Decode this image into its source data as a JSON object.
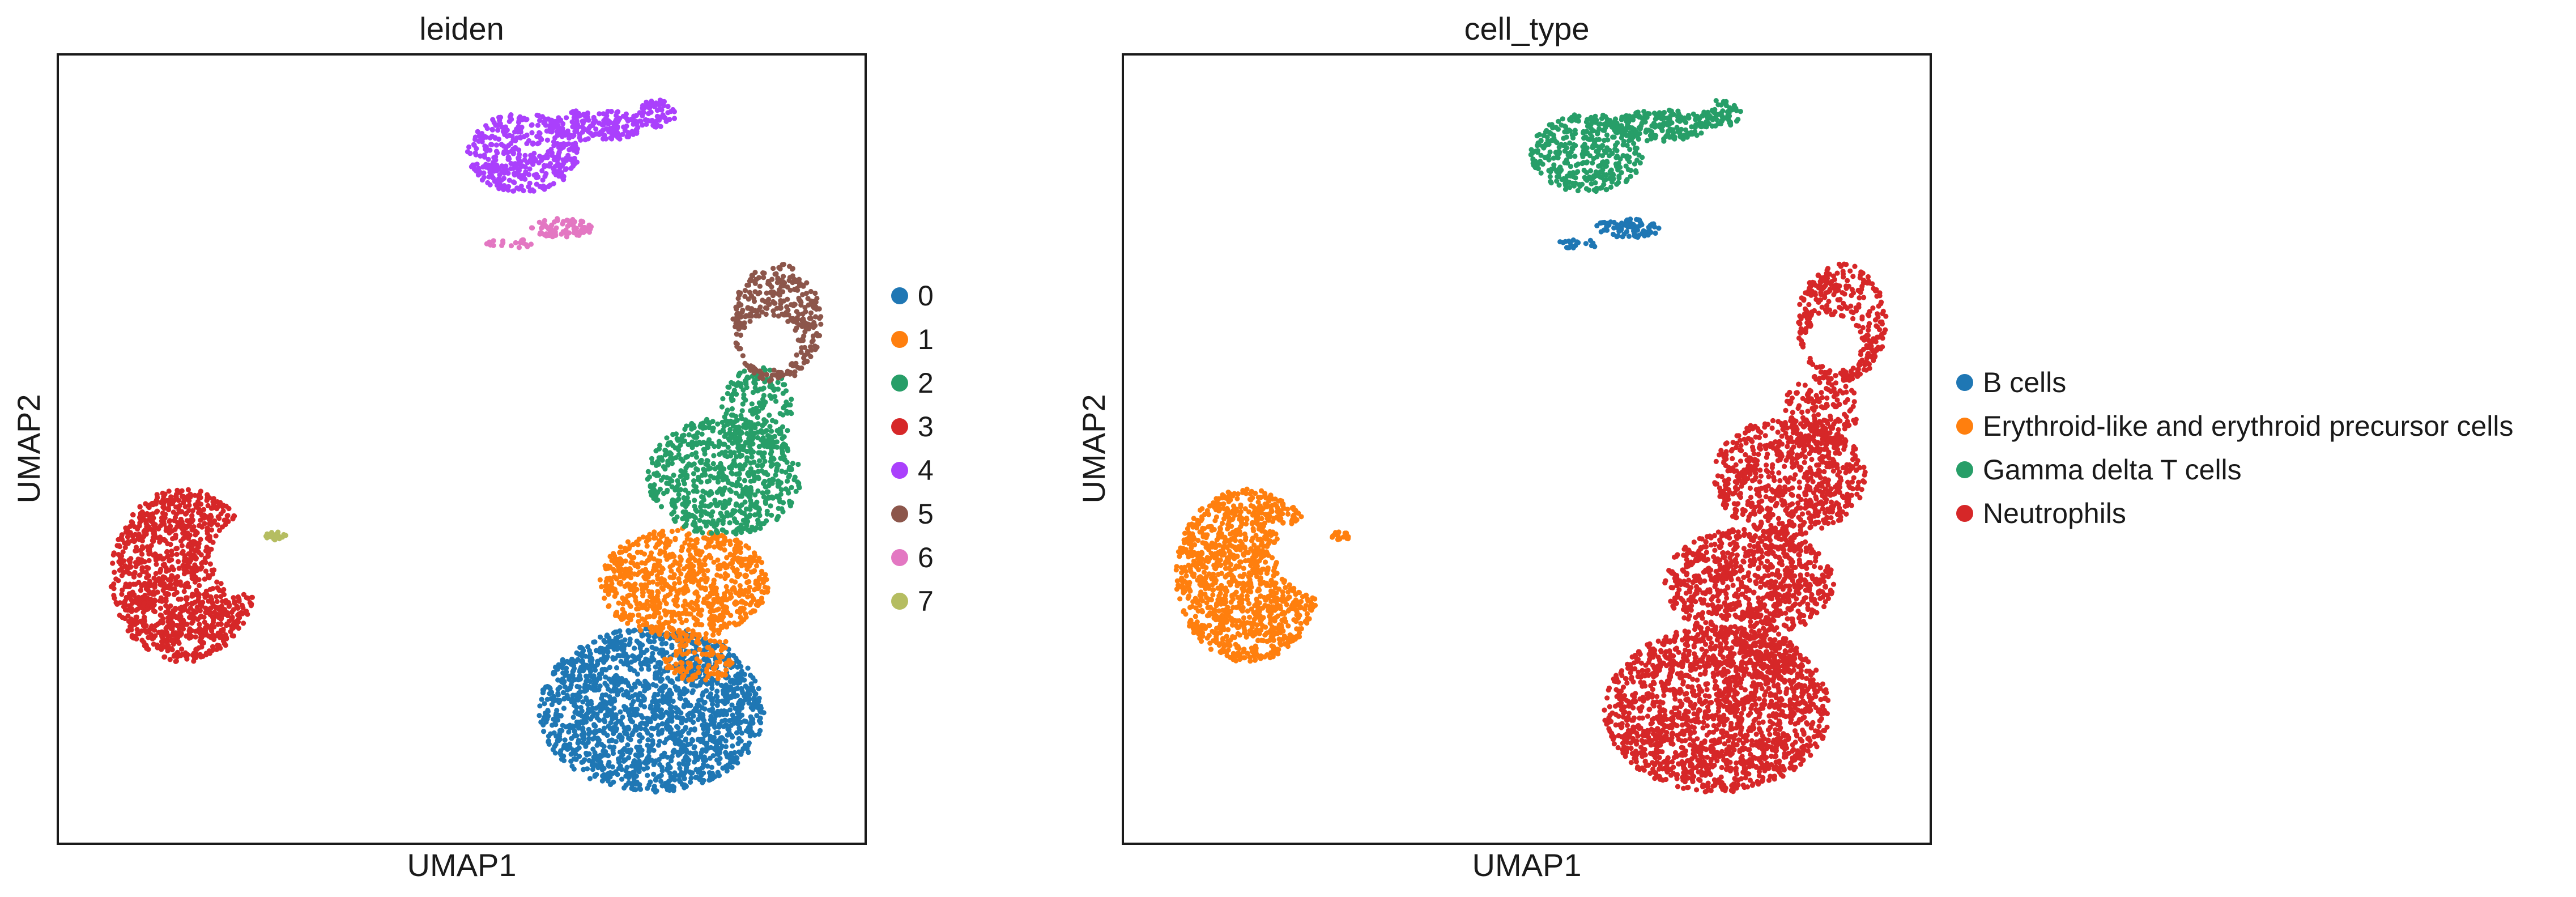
{
  "chart_data": [
    {
      "type": "scatter",
      "title": "leiden",
      "xlabel": "UMAP1",
      "ylabel": "UMAP2",
      "xlim": [
        -4,
        16
      ],
      "ylim": [
        -6,
        14
      ],
      "grid": false,
      "legend_position": "right",
      "series": [
        {
          "name": "0",
          "color": "#1f77b4",
          "shapes": [
            {
              "cx": 10.7,
              "cy": -2.6,
              "rx": 2.8,
              "ry": 2.1,
              "n": 1700
            }
          ]
        },
        {
          "name": "1",
          "color": "#ff7f0e",
          "shapes": [
            {
              "cx": 11.5,
              "cy": 0.6,
              "rx": 2.1,
              "ry": 1.4,
              "n": 820
            },
            {
              "cx": 11.9,
              "cy": -1.3,
              "rx": 0.9,
              "ry": 0.6,
              "n": 110
            }
          ]
        },
        {
          "name": "2",
          "color": "#279e68",
          "shapes": [
            {
              "cx": 12.5,
              "cy": 3.3,
              "rx": 1.9,
              "ry": 1.5,
              "n": 700
            },
            {
              "cx": 13.3,
              "cy": 5.0,
              "rx": 0.9,
              "ry": 1.1,
              "n": 180
            }
          ]
        },
        {
          "name": "3",
          "color": "#d62728",
          "shapes": [
            {
              "cx": -0.9,
              "cy": 0.8,
              "rx": 1.8,
              "ry": 2.2,
              "n": 1100,
              "notch": {
                "cx": 0.8,
                "cy": 1.3,
                "r": 1.0
              }
            }
          ]
        },
        {
          "name": "4",
          "color": "#aa40fc",
          "shapes": [
            {
              "cx": 7.5,
              "cy": 11.5,
              "rx": 1.4,
              "ry": 1.0,
              "n": 380
            },
            {
              "cx": 9.3,
              "cy": 12.2,
              "rx": 1.2,
              "ry": 0.4,
              "n": 180
            },
            {
              "cx": 10.8,
              "cy": 12.5,
              "rx": 0.5,
              "ry": 0.35,
              "n": 60
            }
          ]
        },
        {
          "name": "5",
          "color": "#8c564b",
          "shapes": [
            {
              "cx": 13.8,
              "cy": 7.2,
              "rx": 1.1,
              "ry": 1.5,
              "n": 310,
              "notch": {
                "cx": 13.6,
                "cy": 6.7,
                "r": 0.7
              }
            }
          ]
        },
        {
          "name": "6",
          "color": "#e377c2",
          "shapes": [
            {
              "cx": 8.5,
              "cy": 9.6,
              "rx": 0.8,
              "ry": 0.25,
              "n": 80
            },
            {
              "cx": 7.2,
              "cy": 9.2,
              "rx": 0.6,
              "ry": 0.12,
              "n": 20
            }
          ]
        },
        {
          "name": "7",
          "color": "#b5bd61",
          "shapes": [
            {
              "cx": 1.4,
              "cy": 1.8,
              "rx": 0.25,
              "ry": 0.1,
              "n": 20
            }
          ]
        }
      ]
    },
    {
      "type": "scatter",
      "title": "cell_type",
      "xlabel": "UMAP1",
      "ylabel": "UMAP2",
      "xlim": [
        -4,
        16
      ],
      "ylim": [
        -6,
        14
      ],
      "grid": false,
      "legend_position": "right",
      "series": [
        {
          "name": "B cells",
          "color": "#1f77b4",
          "shapes": [
            {
              "cx": 8.5,
              "cy": 9.6,
              "rx": 0.8,
              "ry": 0.25,
              "n": 80
            },
            {
              "cx": 7.2,
              "cy": 9.2,
              "rx": 0.6,
              "ry": 0.12,
              "n": 20
            }
          ]
        },
        {
          "name": "Erythroid-like and erythroid precursor cells",
          "color": "#ff7f0e",
          "shapes": [
            {
              "cx": -0.9,
              "cy": 0.8,
              "rx": 1.8,
              "ry": 2.2,
              "n": 1100,
              "notch": {
                "cx": 0.8,
                "cy": 1.3,
                "r": 1.0
              }
            },
            {
              "cx": 1.4,
              "cy": 1.8,
              "rx": 0.25,
              "ry": 0.1,
              "n": 20
            }
          ]
        },
        {
          "name": "Gamma delta T cells",
          "color": "#279e68",
          "shapes": [
            {
              "cx": 7.5,
              "cy": 11.5,
              "rx": 1.4,
              "ry": 1.0,
              "n": 380
            },
            {
              "cx": 9.3,
              "cy": 12.2,
              "rx": 1.2,
              "ry": 0.4,
              "n": 180
            },
            {
              "cx": 10.8,
              "cy": 12.5,
              "rx": 0.5,
              "ry": 0.35,
              "n": 60
            }
          ]
        },
        {
          "name": "Neutrophils",
          "color": "#d62728",
          "shapes": [
            {
              "cx": 10.7,
              "cy": -2.6,
              "rx": 2.8,
              "ry": 2.1,
              "n": 1700
            },
            {
              "cx": 11.5,
              "cy": 0.6,
              "rx": 2.1,
              "ry": 1.4,
              "n": 820
            },
            {
              "cx": 11.9,
              "cy": -1.3,
              "rx": 0.9,
              "ry": 0.6,
              "n": 110
            },
            {
              "cx": 12.5,
              "cy": 3.3,
              "rx": 1.9,
              "ry": 1.5,
              "n": 700
            },
            {
              "cx": 13.3,
              "cy": 5.0,
              "rx": 0.9,
              "ry": 1.1,
              "n": 180
            },
            {
              "cx": 13.8,
              "cy": 7.2,
              "rx": 1.1,
              "ry": 1.5,
              "n": 310,
              "notch": {
                "cx": 13.6,
                "cy": 6.7,
                "r": 0.7
              }
            }
          ]
        }
      ]
    }
  ]
}
